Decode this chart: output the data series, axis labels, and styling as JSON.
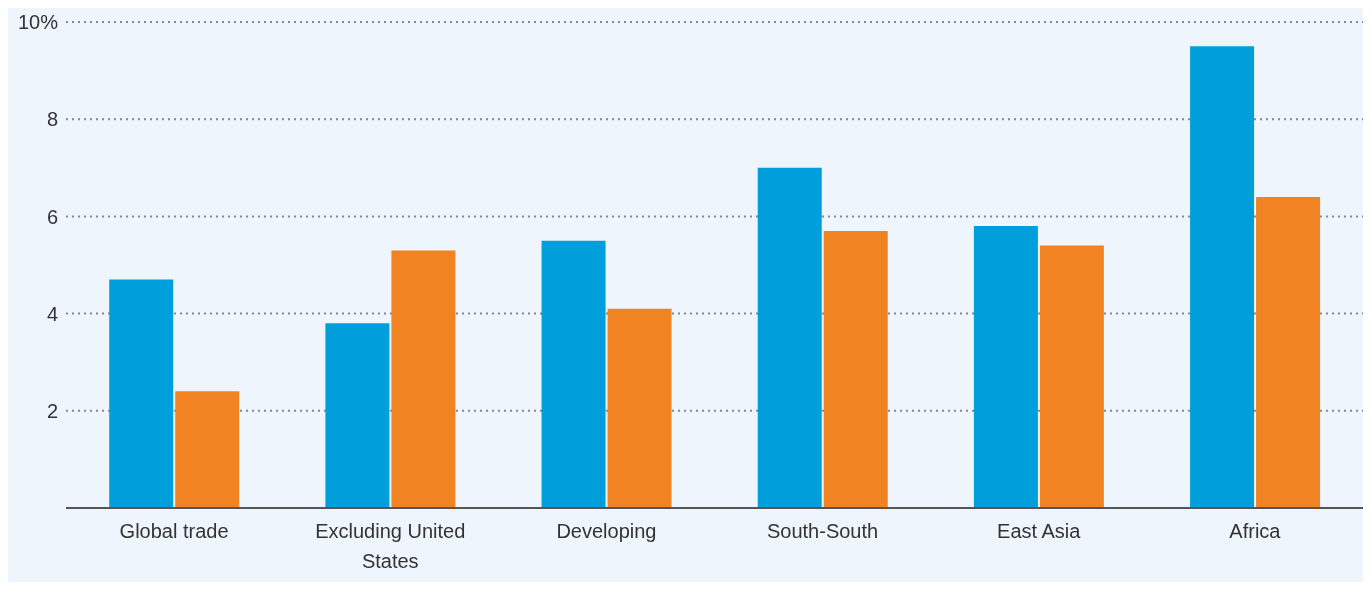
{
  "chart_data": {
    "type": "bar",
    "categories": [
      "Global trade",
      "Excluding United States",
      "Developing",
      "South-South",
      "East Asia",
      "Africa"
    ],
    "series": [
      {
        "color": "#009fdb",
        "values": [
          4.7,
          3.8,
          5.5,
          7.0,
          5.8,
          9.5
        ]
      },
      {
        "color": "#f28322",
        "values": [
          2.4,
          5.3,
          4.1,
          5.7,
          5.4,
          6.4
        ]
      }
    ],
    "ylim": [
      0,
      10
    ],
    "yticks": [
      {
        "value": 0,
        "label": null
      },
      2,
      4,
      6,
      8,
      {
        "value": 10,
        "label": "10%"
      }
    ],
    "grid": "y"
  }
}
